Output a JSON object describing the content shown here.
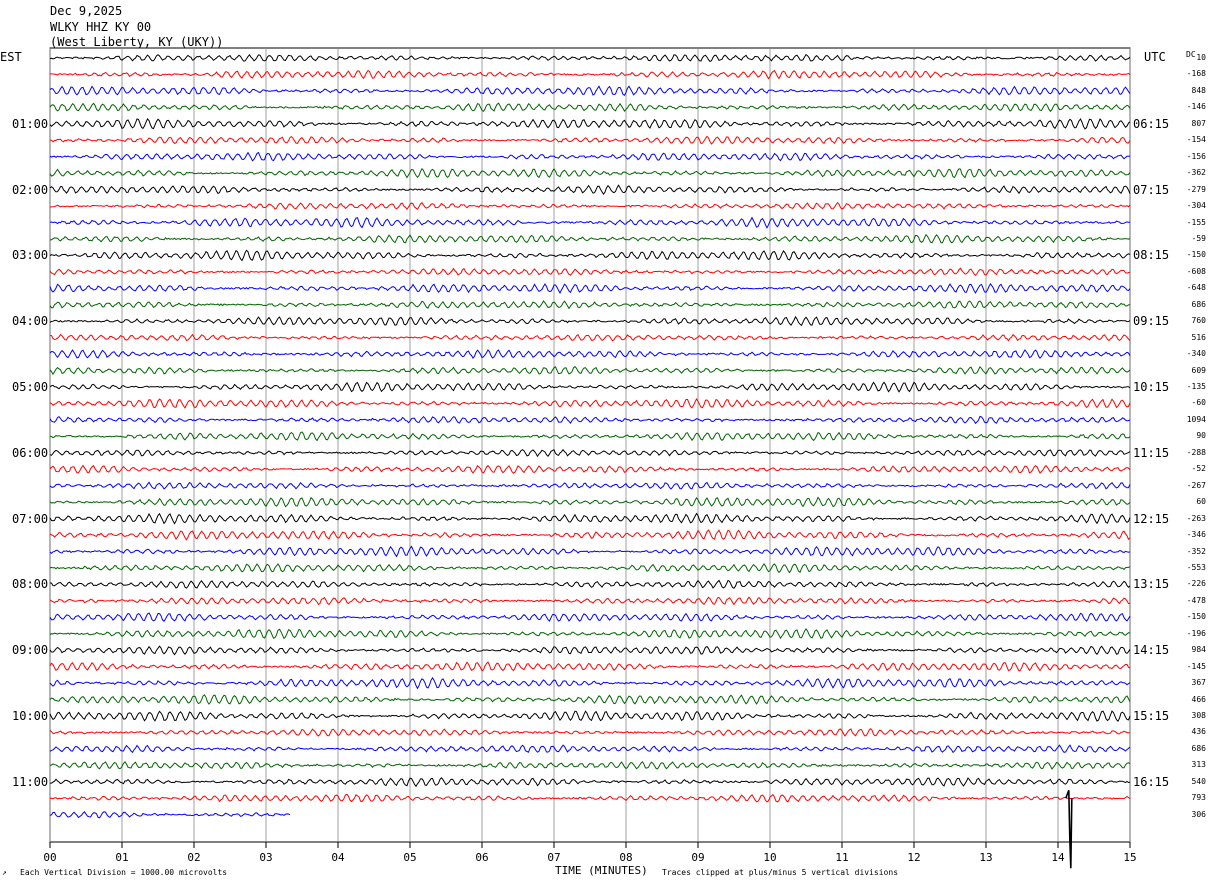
{
  "header": {
    "date": "Dec 9,2025",
    "station": "WLKY HHZ KY 00",
    "location": "(West Liberty, KY (UKY))"
  },
  "left_tz": "EST",
  "right_tz": "UTC",
  "dc_label": "DC",
  "footer": {
    "scale_note": "Each Vertical Division = 1000.00 microvolts",
    "xlabel": "TIME (MINUTES)",
    "clip_note": "Traces clipped at plus/minus 5 vertical divisions"
  },
  "chart_data": {
    "type": "line",
    "title": "",
    "xlabel": "TIME (MINUTES)",
    "xlim": [
      0,
      15
    ],
    "x_ticks": [
      "00",
      "01",
      "02",
      "03",
      "04",
      "05",
      "06",
      "07",
      "08",
      "09",
      "10",
      "11",
      "12",
      "13",
      "14",
      "15"
    ],
    "hour_labels_est": [
      "01:00",
      "02:00",
      "03:00",
      "04:00",
      "05:00",
      "06:00",
      "07:00",
      "08:00",
      "09:00",
      "10:00",
      "11:00"
    ],
    "hour_labels_utc": [
      "06:15",
      "07:15",
      "08:15",
      "09:15",
      "10:15",
      "11:15",
      "12:15",
      "13:15",
      "14:15",
      "15:15",
      "16:15"
    ],
    "trace_colors": [
      "#000000",
      "#ff0000",
      "#0000ff",
      "#006400"
    ],
    "dc_offsets": [
      "10",
      "-168",
      "848",
      "-146",
      "807",
      "-154",
      "-156",
      "-362",
      "-279",
      "-304",
      "-155",
      "-59",
      "-150",
      "-608",
      "-648",
      "686",
      "760",
      "516",
      "-340",
      "609",
      "-135",
      "-60",
      "1094",
      "90",
      "-288",
      "-52",
      "-267",
      "60",
      "-263",
      "-346",
      "-352",
      "-553",
      "-226",
      "-478",
      "-150",
      "-196",
      "984",
      "-145",
      "367",
      "466",
      "308",
      "436",
      "686",
      "313",
      "540",
      "793",
      "306"
    ],
    "traces_total": 47,
    "last_trace_length_minutes": 3.35,
    "event": {
      "minute": 14.15,
      "trace_index": 45
    }
  }
}
